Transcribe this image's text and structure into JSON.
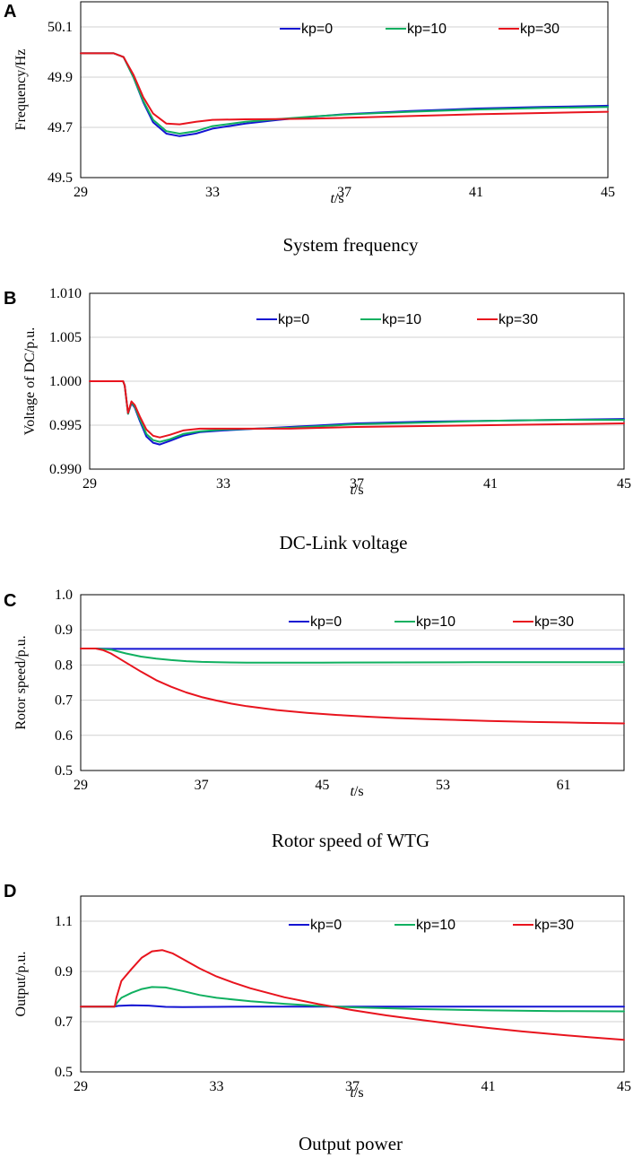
{
  "colors": {
    "kp0": "#1414d2",
    "kp10": "#10b060",
    "kp30": "#e8141e"
  },
  "chart_data": [
    {
      "type": "line",
      "panel": "A",
      "caption": "System frequency",
      "ylabel": "Frequency/Hz",
      "xlabel_italic": "t",
      "xlabel_rest": "/s",
      "xlim": [
        29,
        45
      ],
      "ylim": [
        49.5,
        50.2
      ],
      "xticks": [
        29,
        33,
        37,
        41,
        45
      ],
      "yticks": [
        49.5,
        49.7,
        49.9,
        50.1
      ],
      "ytick_labels": [
        "49.5",
        "49.7",
        "49.9",
        "50.1"
      ],
      "legend": [
        "kp=0",
        "kp=10",
        "kp=30"
      ],
      "series": [
        {
          "name": "kp=0",
          "color": "#1414d2",
          "x": [
            29,
            30,
            30.3,
            30.6,
            30.9,
            31.2,
            31.6,
            32.0,
            32.5,
            33,
            34,
            35,
            36,
            37,
            39,
            41,
            43,
            45
          ],
          "y": [
            49.995,
            49.995,
            49.98,
            49.9,
            49.8,
            49.72,
            49.675,
            49.665,
            49.675,
            49.695,
            49.715,
            49.73,
            49.742,
            49.752,
            49.765,
            49.775,
            49.781,
            49.786
          ]
        },
        {
          "name": "kp=10",
          "color": "#10b060",
          "x": [
            29,
            30,
            30.3,
            30.6,
            30.9,
            31.2,
            31.6,
            32.0,
            32.5,
            33,
            34,
            35,
            36,
            37,
            39,
            41,
            43,
            45
          ],
          "y": [
            49.995,
            49.995,
            49.98,
            49.9,
            49.805,
            49.73,
            49.685,
            49.675,
            49.685,
            49.705,
            49.722,
            49.733,
            49.743,
            49.751,
            49.762,
            49.771,
            49.777,
            49.781
          ]
        },
        {
          "name": "kp=30",
          "color": "#e8141e",
          "x": [
            29,
            30,
            30.3,
            30.6,
            30.9,
            31.2,
            31.6,
            32.0,
            32.5,
            33,
            34,
            35,
            36,
            37,
            39,
            41,
            43,
            45
          ],
          "y": [
            49.995,
            49.995,
            49.98,
            49.91,
            49.82,
            49.755,
            49.715,
            49.712,
            49.722,
            49.73,
            49.732,
            49.733,
            49.735,
            49.738,
            49.745,
            49.752,
            49.757,
            49.762
          ]
        }
      ]
    },
    {
      "type": "line",
      "panel": "B",
      "caption": "DC-Link voltage",
      "ylabel": "Voltage of DC/p.u.",
      "xlabel_italic": "t",
      "xlabel_rest": "/s",
      "xlim": [
        29,
        45
      ],
      "ylim": [
        0.99,
        1.01
      ],
      "xticks": [
        29,
        33,
        37,
        41,
        45
      ],
      "yticks": [
        0.99,
        0.995,
        1.0,
        1.005,
        1.01
      ],
      "ytick_labels": [
        "0.990",
        "0.995",
        "1.000",
        "1.005",
        "1.010"
      ],
      "legend": [
        "kp=0",
        "kp=10",
        "kp=30"
      ],
      "series": [
        {
          "name": "kp=0",
          "color": "#1414d2",
          "x": [
            29,
            30,
            30.05,
            30.15,
            30.25,
            30.35,
            30.5,
            30.7,
            30.9,
            31.1,
            31.4,
            31.8,
            32.3,
            33,
            34,
            35,
            36,
            37,
            39,
            41,
            43,
            45
          ],
          "y": [
            1.0,
            1.0,
            0.9995,
            0.9963,
            0.9975,
            0.997,
            0.9955,
            0.9937,
            0.993,
            0.9928,
            0.9932,
            0.9938,
            0.9942,
            0.9944,
            0.9946,
            0.9948,
            0.995,
            0.9952,
            0.9954,
            0.9955,
            0.9956,
            0.9957
          ]
        },
        {
          "name": "kp=10",
          "color": "#10b060",
          "x": [
            29,
            30,
            30.05,
            30.15,
            30.25,
            30.35,
            30.5,
            30.7,
            30.9,
            31.1,
            31.4,
            31.8,
            32.3,
            33,
            34,
            35,
            36,
            37,
            39,
            41,
            43,
            45
          ],
          "y": [
            1.0,
            1.0,
            0.9995,
            0.9963,
            0.9976,
            0.9971,
            0.9957,
            0.994,
            0.9933,
            0.9931,
            0.9934,
            0.994,
            0.9943,
            0.9945,
            0.9946,
            0.9947,
            0.9949,
            0.9951,
            0.9953,
            0.9955,
            0.9956,
            0.9956
          ]
        },
        {
          "name": "kp=30",
          "color": "#e8141e",
          "x": [
            29,
            30,
            30.05,
            30.15,
            30.25,
            30.35,
            30.5,
            30.7,
            30.9,
            31.1,
            31.4,
            31.8,
            32.3,
            33,
            34,
            35,
            36,
            37,
            39,
            41,
            43,
            45
          ],
          "y": [
            1.0,
            1.0,
            0.9995,
            0.9964,
            0.9977,
            0.9973,
            0.996,
            0.9945,
            0.9938,
            0.9936,
            0.9939,
            0.9944,
            0.9946,
            0.9946,
            0.9946,
            0.9946,
            0.9947,
            0.9948,
            0.9949,
            0.995,
            0.9951,
            0.9952
          ]
        }
      ]
    },
    {
      "type": "line",
      "panel": "C",
      "caption": "Rotor speed of WTG",
      "ylabel": "Rotor speed/p.u.",
      "xlabel_italic": "t",
      "xlabel_rest": "/s",
      "xlim": [
        29,
        65
      ],
      "ylim": [
        0.5,
        1.0
      ],
      "xticks": [
        29,
        37,
        45,
        53,
        61
      ],
      "yticks": [
        0.5,
        0.6,
        0.7,
        0.8,
        0.9,
        1.0
      ],
      "ytick_labels": [
        "0.5",
        "0.6",
        "0.7",
        "0.8",
        "0.9",
        "1.0"
      ],
      "legend": [
        "kp=0",
        "kp=10",
        "kp=30"
      ],
      "series": [
        {
          "name": "kp=0",
          "color": "#1414d2",
          "x": [
            29,
            30,
            31,
            35,
            45,
            55,
            65
          ],
          "y": [
            0.847,
            0.847,
            0.846,
            0.846,
            0.846,
            0.846,
            0.846
          ]
        },
        {
          "name": "kp=10",
          "color": "#10b060",
          "x": [
            29,
            30,
            31,
            32,
            33,
            34,
            35,
            36,
            37,
            38,
            40,
            45,
            55,
            65
          ],
          "y": [
            0.847,
            0.847,
            0.844,
            0.833,
            0.824,
            0.818,
            0.814,
            0.811,
            0.809,
            0.808,
            0.807,
            0.807,
            0.808,
            0.808
          ]
        },
        {
          "name": "kp=30",
          "color": "#e8141e",
          "x": [
            29,
            30,
            30.5,
            31,
            32,
            33,
            34,
            35,
            36,
            37,
            38,
            39,
            40,
            42,
            44,
            46,
            48,
            50,
            53,
            56,
            59,
            62,
            65
          ],
          "y": [
            0.847,
            0.847,
            0.842,
            0.833,
            0.807,
            0.781,
            0.757,
            0.738,
            0.722,
            0.709,
            0.699,
            0.69,
            0.683,
            0.672,
            0.664,
            0.658,
            0.653,
            0.649,
            0.645,
            0.641,
            0.638,
            0.636,
            0.634
          ]
        }
      ]
    },
    {
      "type": "line",
      "panel": "D",
      "caption": "Output power",
      "ylabel": "Output/p.u.",
      "xlabel_italic": "t",
      "xlabel_rest": "/s",
      "xlim": [
        29,
        45
      ],
      "ylim": [
        0.5,
        1.2
      ],
      "xticks": [
        29,
        33,
        37,
        41,
        45
      ],
      "yticks": [
        0.5,
        0.7,
        0.9,
        1.1
      ],
      "ytick_labels": [
        "0.5",
        "0.7",
        "0.9",
        "1.1"
      ],
      "legend": [
        "kp=0",
        "kp=10",
        "kp=30"
      ],
      "series": [
        {
          "name": "kp=0",
          "color": "#1414d2",
          "x": [
            29,
            30,
            30.1,
            30.5,
            31,
            31.5,
            32,
            33,
            34,
            35,
            37,
            41,
            45
          ],
          "y": [
            0.76,
            0.76,
            0.763,
            0.765,
            0.764,
            0.759,
            0.758,
            0.759,
            0.76,
            0.76,
            0.76,
            0.76,
            0.76
          ]
        },
        {
          "name": "kp=10",
          "color": "#10b060",
          "x": [
            29,
            30,
            30.05,
            30.2,
            30.5,
            30.8,
            31.1,
            31.5,
            32,
            32.5,
            33,
            34,
            35,
            36,
            37,
            39,
            41,
            43,
            45
          ],
          "y": [
            0.76,
            0.76,
            0.772,
            0.795,
            0.815,
            0.83,
            0.838,
            0.836,
            0.822,
            0.806,
            0.795,
            0.781,
            0.771,
            0.763,
            0.757,
            0.75,
            0.745,
            0.742,
            0.741
          ]
        },
        {
          "name": "kp=30",
          "color": "#e8141e",
          "x": [
            29,
            30,
            30.05,
            30.2,
            30.5,
            30.8,
            31.1,
            31.4,
            31.7,
            32,
            32.5,
            33,
            33.5,
            34,
            35,
            36,
            37,
            38,
            39,
            40,
            41,
            42,
            43,
            44,
            45
          ],
          "y": [
            0.76,
            0.76,
            0.795,
            0.862,
            0.91,
            0.955,
            0.98,
            0.985,
            0.972,
            0.95,
            0.912,
            0.88,
            0.855,
            0.833,
            0.797,
            0.77,
            0.746,
            0.725,
            0.707,
            0.69,
            0.675,
            0.661,
            0.649,
            0.638,
            0.628
          ]
        }
      ]
    }
  ]
}
